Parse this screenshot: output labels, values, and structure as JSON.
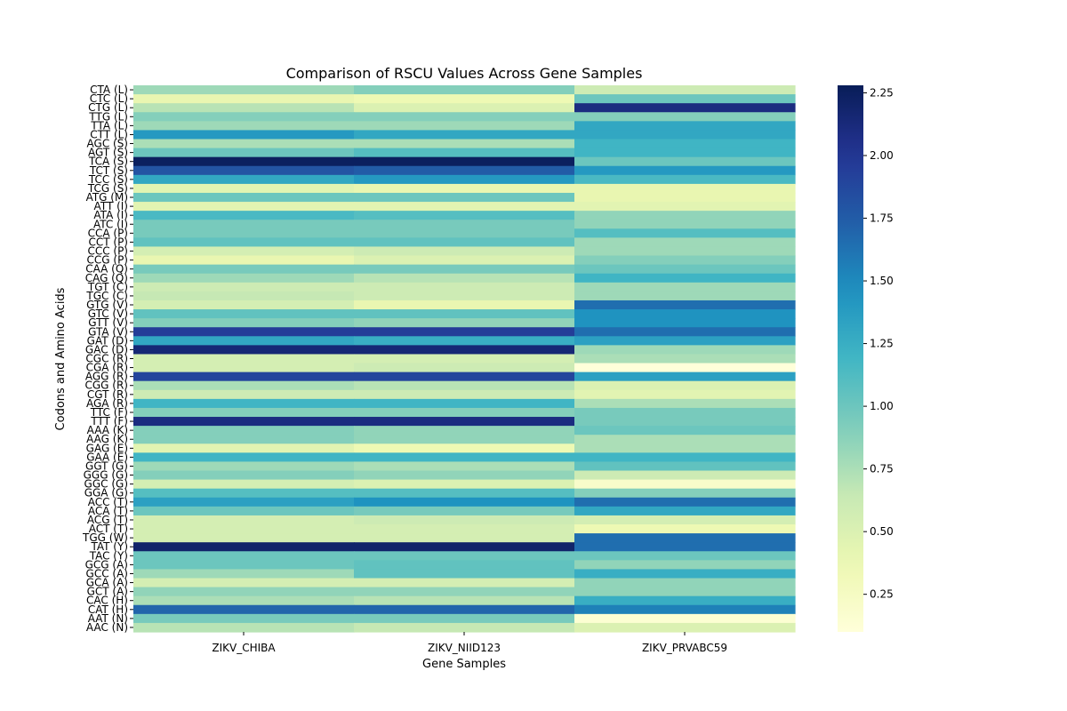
{
  "chart_data": {
    "type": "heatmap",
    "title": "Comparison of RSCU Values Across Gene Samples",
    "xlabel": "Gene Samples",
    "ylabel": "Codons and Amino Acids",
    "columns": [
      "ZIKV_CHIBA",
      "ZIKV_NIID123",
      "ZIKV_PRVABC59"
    ],
    "rows": [
      "CTA (L)",
      "CTC (L)",
      "CTG (L)",
      "TTG (L)",
      "TTA (L)",
      "CTT (L)",
      "AGC (S)",
      "AGT (S)",
      "TCA (S)",
      "TCT (S)",
      "TCC (S)",
      "TCG (S)",
      "ATG (M)",
      "ATT (I)",
      "ATA (I)",
      "ATC (I)",
      "CCA (P)",
      "CCT (P)",
      "CCC (P)",
      "CCG (P)",
      "CAA (Q)",
      "CAG (Q)",
      "TGT (C)",
      "TGC (C)",
      "GTG (V)",
      "GTC (V)",
      "GTT (V)",
      "GTA (V)",
      "GAT (D)",
      "GAC (D)",
      "CGC (R)",
      "CGA (R)",
      "AGG (R)",
      "CGG (R)",
      "CGT (R)",
      "AGA (R)",
      "TTC (F)",
      "TTT (F)",
      "AAA (K)",
      "AAG (K)",
      "GAG (E)",
      "GAA (E)",
      "GGT (G)",
      "GGG (G)",
      "GGC (G)",
      "GGA (G)",
      "ACC (T)",
      "ACA (T)",
      "ACG (T)",
      "ACT (T)",
      "TGG (W)",
      "TAT (Y)",
      "TAC (Y)",
      "GCG (A)",
      "GCC (A)",
      "GCA (A)",
      "GCT (A)",
      "CAC (H)",
      "CAT (H)",
      "AAT (N)",
      "AAC (N)"
    ],
    "values": [
      [
        0.8,
        0.9,
        0.6
      ],
      [
        0.4,
        0.35,
        1.0
      ],
      [
        0.7,
        0.5,
        2.1
      ],
      [
        0.9,
        0.9,
        0.9
      ],
      [
        0.8,
        0.8,
        1.3
      ],
      [
        1.4,
        1.3,
        1.3
      ],
      [
        0.75,
        0.75,
        1.2
      ],
      [
        1.0,
        1.1,
        1.2
      ],
      [
        2.25,
        2.25,
        1.0
      ],
      [
        1.8,
        1.75,
        1.4
      ],
      [
        1.3,
        1.4,
        1.15
      ],
      [
        0.45,
        0.4,
        0.4
      ],
      [
        1.0,
        1.0,
        0.4
      ],
      [
        0.45,
        0.45,
        0.45
      ],
      [
        1.15,
        1.1,
        0.85
      ],
      [
        0.95,
        0.95,
        0.85
      ],
      [
        0.95,
        0.95,
        1.1
      ],
      [
        1.05,
        1.05,
        0.8
      ],
      [
        0.55,
        0.6,
        0.8
      ],
      [
        0.4,
        0.5,
        0.9
      ],
      [
        0.95,
        0.95,
        1.0
      ],
      [
        0.8,
        0.7,
        1.2
      ],
      [
        0.6,
        0.6,
        0.8
      ],
      [
        0.65,
        0.6,
        0.8
      ],
      [
        0.55,
        0.4,
        1.65
      ],
      [
        1.05,
        1.05,
        1.45
      ],
      [
        0.9,
        0.85,
        1.45
      ],
      [
        1.95,
        1.95,
        1.65
      ],
      [
        1.3,
        1.25,
        1.35
      ],
      [
        2.15,
        2.15,
        0.8
      ],
      [
        0.55,
        0.55,
        0.75
      ],
      [
        0.55,
        0.6,
        0.1
      ],
      [
        1.9,
        1.9,
        1.35
      ],
      [
        0.75,
        0.7,
        0.5
      ],
      [
        0.6,
        0.6,
        0.45
      ],
      [
        1.2,
        1.2,
        0.75
      ],
      [
        0.9,
        0.9,
        0.95
      ],
      [
        2.1,
        2.1,
        0.95
      ],
      [
        0.9,
        0.85,
        1.0
      ],
      [
        0.9,
        0.85,
        0.75
      ],
      [
        0.45,
        0.35,
        0.75
      ],
      [
        1.2,
        1.2,
        1.2
      ],
      [
        0.8,
        0.75,
        1.05
      ],
      [
        0.9,
        0.85,
        0.6
      ],
      [
        0.55,
        0.5,
        0.2
      ],
      [
        1.1,
        1.1,
        0.9
      ],
      [
        1.35,
        1.45,
        1.65
      ],
      [
        1.0,
        0.95,
        1.3
      ],
      [
        0.55,
        0.6,
        0.55
      ],
      [
        0.55,
        0.55,
        0.35
      ],
      [
        0.55,
        0.55,
        1.65
      ],
      [
        2.2,
        2.2,
        1.65
      ],
      [
        1.0,
        1.0,
        1.0
      ],
      [
        1.0,
        1.05,
        0.85
      ],
      [
        0.8,
        1.05,
        1.25
      ],
      [
        0.55,
        0.55,
        0.85
      ],
      [
        0.85,
        0.85,
        0.85
      ],
      [
        0.75,
        0.7,
        1.25
      ],
      [
        1.7,
        1.7,
        1.55
      ],
      [
        0.95,
        0.95,
        0.15
      ],
      [
        0.7,
        0.65,
        0.5
      ]
    ],
    "vmin": 0.1,
    "vmax": 2.28,
    "colormap": "YlGnBu",
    "colorbar": {
      "ticks": [
        "0.25",
        "0.50",
        "0.75",
        "1.00",
        "1.25",
        "1.50",
        "1.75",
        "2.00",
        "2.25"
      ],
      "tick_values": [
        0.25,
        0.5,
        0.75,
        1.0,
        1.25,
        1.5,
        1.75,
        2.0,
        2.25
      ]
    }
  }
}
